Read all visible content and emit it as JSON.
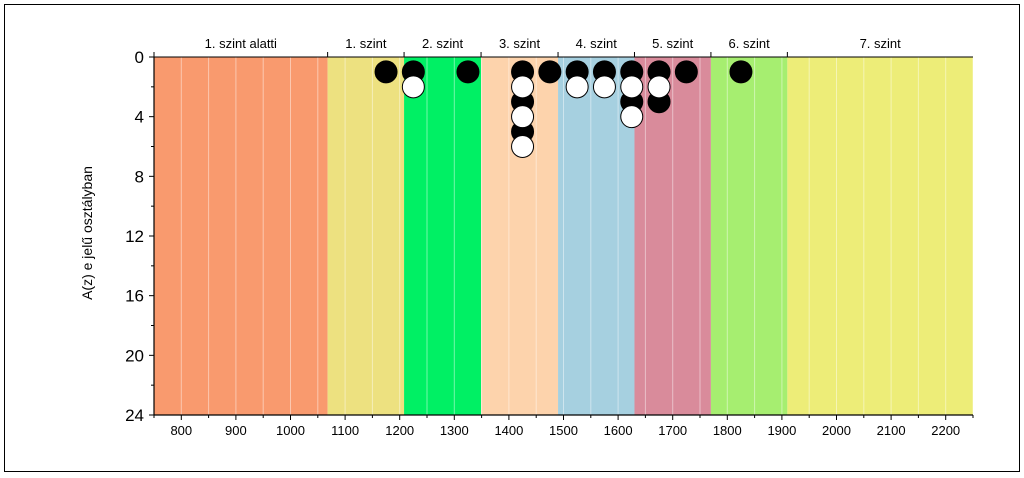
{
  "chart_data": {
    "type": "scatter",
    "xlabel": "",
    "ylabel": "A(z) e jelű osztályban",
    "xlim": [
      750,
      2250
    ],
    "ylim": [
      24,
      0
    ],
    "grid": true,
    "xticks": [
      800,
      900,
      1000,
      1100,
      1200,
      1300,
      1400,
      1500,
      1600,
      1700,
      1800,
      1900,
      2000,
      2100,
      2200
    ],
    "yticks": [
      0,
      4,
      8,
      12,
      16,
      20,
      24
    ],
    "bands": [
      {
        "label": "1. szint alatti",
        "from": 750,
        "to": 1068,
        "color": "#f99a6e"
      },
      {
        "label": "1. szint",
        "from": 1068,
        "to": 1208,
        "color": "#ede180"
      },
      {
        "label": "2. szint",
        "from": 1208,
        "to": 1349,
        "color": "#00f064"
      },
      {
        "label": "3. szint",
        "from": 1349,
        "to": 1490,
        "color": "#fdd3ac"
      },
      {
        "label": "4. szint",
        "from": 1490,
        "to": 1630,
        "color": "#a6d0e0"
      },
      {
        "label": "5. szint",
        "from": 1630,
        "to": 1770,
        "color": "#d98b9b"
      },
      {
        "label": "6. szint",
        "from": 1770,
        "to": 1910,
        "color": "#a6ee70"
      },
      {
        "label": "7. szint",
        "from": 1910,
        "to": 2250,
        "color": "#eded78"
      }
    ],
    "series": [
      {
        "color": "#000000",
        "points": [
          [
            1175,
            1
          ],
          [
            1225,
            1
          ],
          [
            1325,
            1
          ],
          [
            1425,
            1
          ],
          [
            1425,
            3
          ],
          [
            1425,
            5
          ],
          [
            1475,
            1
          ],
          [
            1525,
            1
          ],
          [
            1575,
            1
          ],
          [
            1625,
            1
          ],
          [
            1625,
            3
          ],
          [
            1675,
            1
          ],
          [
            1675,
            3
          ],
          [
            1725,
            1
          ],
          [
            1825,
            1
          ]
        ]
      },
      {
        "color": "#ffffff",
        "points": [
          [
            1225,
            2
          ],
          [
            1425,
            2
          ],
          [
            1425,
            4
          ],
          [
            1425,
            6
          ],
          [
            1525,
            2
          ],
          [
            1575,
            2
          ],
          [
            1625,
            2
          ],
          [
            1625,
            4
          ],
          [
            1675,
            2
          ]
        ]
      }
    ]
  }
}
